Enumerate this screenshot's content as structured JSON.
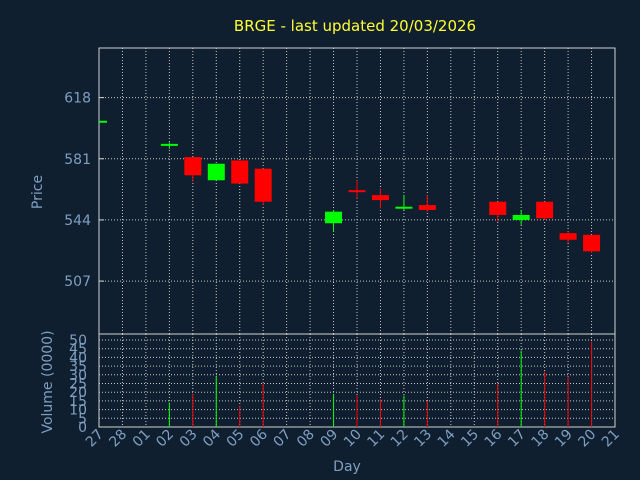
{
  "chart_data": {
    "type": "candlestick",
    "title": "BRGE - last updated 20/03/2026",
    "xlabel": "Day",
    "price_ylabel": "Price",
    "volume_ylabel": "Volume (0000)",
    "x_ticks": [
      "27",
      "28",
      "01",
      "02",
      "03",
      "04",
      "05",
      "06",
      "07",
      "08",
      "09",
      "10",
      "11",
      "12",
      "13",
      "14",
      "15",
      "16",
      "17",
      "18",
      "19",
      "20",
      "21"
    ],
    "price_ticks": [
      618,
      581,
      544,
      507
    ],
    "price_ylim": [
      475,
      648
    ],
    "volume_ticks": [
      0,
      5,
      10,
      15,
      20,
      25,
      30,
      35,
      40,
      45,
      50
    ],
    "volume_tick_labels": [
      "0",
      "5",
      "10",
      "15",
      "20",
      "25",
      "30",
      "35",
      "40",
      "45",
      "50"
    ],
    "volume_ylim": [
      0,
      50
    ],
    "up_color": "#00ff00",
    "down_color": "#ff0000",
    "candles": [
      {
        "x": "27",
        "open": 604,
        "high": 604,
        "low": 604,
        "close": 604,
        "volume": 0
      },
      {
        "x": "02",
        "open": 590,
        "high": 591,
        "low": 587,
        "close": 590,
        "volume": 14
      },
      {
        "x": "03",
        "open": 582,
        "high": 582,
        "low": 567,
        "close": 571,
        "volume": 19
      },
      {
        "x": "04",
        "open": 568,
        "high": 578,
        "low": 568,
        "close": 578,
        "volume": 29
      },
      {
        "x": "05",
        "open": 580,
        "high": 580,
        "low": 566,
        "close": 566,
        "volume": 12
      },
      {
        "x": "06",
        "open": 575,
        "high": 575,
        "low": 553,
        "close": 555,
        "volume": 25
      },
      {
        "x": "09",
        "open": 542,
        "high": 550,
        "low": 537,
        "close": 549,
        "volume": 19
      },
      {
        "x": "10",
        "open": 562,
        "high": 568,
        "low": 557,
        "close": 561,
        "volume": 18
      },
      {
        "x": "11",
        "open": 559,
        "high": 563,
        "low": 551,
        "close": 556,
        "volume": 16
      },
      {
        "x": "12",
        "open": 551,
        "high": 559,
        "low": 550,
        "close": 552,
        "volume": 18
      },
      {
        "x": "13",
        "open": 553,
        "high": 559,
        "low": 549,
        "close": 550,
        "volume": 15
      },
      {
        "x": "16",
        "open": 555,
        "high": 555,
        "low": 543,
        "close": 547,
        "volume": 25
      },
      {
        "x": "17",
        "open": 544,
        "high": 550,
        "low": 541,
        "close": 547,
        "volume": 44
      },
      {
        "x": "18",
        "open": 555,
        "high": 555,
        "low": 544,
        "close": 545,
        "volume": 32
      },
      {
        "x": "19",
        "open": 536,
        "high": 537,
        "low": 530,
        "close": 532,
        "volume": 29
      },
      {
        "x": "20",
        "open": 535,
        "high": 535,
        "low": 524,
        "close": 525,
        "volume": 49
      }
    ]
  }
}
